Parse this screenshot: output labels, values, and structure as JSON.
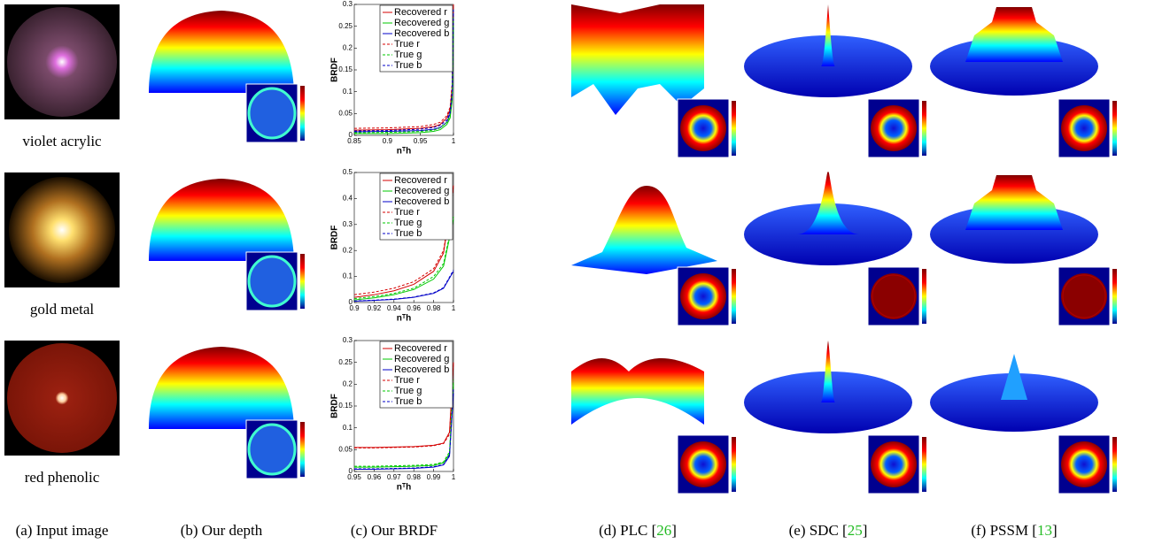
{
  "figure": {
    "row_labels": [
      "violet acrylic",
      "gold metal",
      "red phenolic"
    ],
    "captions": [
      [
        "(a) Input image"
      ],
      [
        "(b) Our depth"
      ],
      [
        "(c) Our BRDF"
      ],
      [
        "(d) PLC [",
        "26",
        "]"
      ],
      [
        "(e) SDC [",
        "25",
        "]"
      ],
      [
        "(f) PSSM [",
        "13",
        "]"
      ]
    ]
  },
  "chart_data": [
    {
      "type": "line",
      "xlabel": "nᵀh",
      "ylabel": "BRDF",
      "xlim": [
        0.85,
        1
      ],
      "xticks": [
        0.85,
        0.9,
        0.95,
        1
      ],
      "ylim": [
        0,
        0.3
      ],
      "yticks": [
        0,
        0.05,
        0.1,
        0.15,
        0.2,
        0.25,
        0.3
      ],
      "legend": "top-right",
      "x": [
        0.85,
        0.9,
        0.95,
        0.97,
        0.98,
        0.99,
        0.995,
        0.998,
        1
      ],
      "series": [
        {
          "name": "Recovered r",
          "color": "#d40000",
          "dashed": false,
          "values": [
            0.012,
            0.013,
            0.016,
            0.02,
            0.025,
            0.04,
            0.06,
            0.11,
            0.3
          ]
        },
        {
          "name": "Recovered g",
          "color": "#00c800",
          "dashed": false,
          "values": [
            0.004,
            0.004,
            0.006,
            0.009,
            0.013,
            0.025,
            0.04,
            0.08,
            0.25
          ]
        },
        {
          "name": "Recovered b",
          "color": "#0000c8",
          "dashed": false,
          "values": [
            0.008,
            0.009,
            0.011,
            0.014,
            0.018,
            0.03,
            0.05,
            0.09,
            0.28
          ]
        },
        {
          "name": "True r",
          "color": "#d40000",
          "dashed": true,
          "values": [
            0.016,
            0.017,
            0.02,
            0.025,
            0.03,
            0.045,
            0.065,
            0.12,
            0.3
          ]
        },
        {
          "name": "True g",
          "color": "#00c800",
          "dashed": true,
          "values": [
            0.006,
            0.007,
            0.009,
            0.012,
            0.017,
            0.03,
            0.045,
            0.09,
            0.27
          ]
        },
        {
          "name": "True b",
          "color": "#0000c8",
          "dashed": true,
          "values": [
            0.01,
            0.011,
            0.014,
            0.018,
            0.023,
            0.035,
            0.055,
            0.1,
            0.29
          ]
        }
      ]
    },
    {
      "type": "line",
      "xlabel": "nᵀh",
      "ylabel": "BRDF",
      "xlim": [
        0.9,
        1
      ],
      "xticks": [
        0.9,
        0.92,
        0.94,
        0.96,
        0.98,
        1
      ],
      "ylim": [
        0,
        0.5
      ],
      "yticks": [
        0,
        0.1,
        0.2,
        0.3,
        0.4,
        0.5
      ],
      "legend": "top-right",
      "x": [
        0.9,
        0.92,
        0.94,
        0.96,
        0.98,
        0.99,
        1
      ],
      "series": [
        {
          "name": "Recovered r",
          "color": "#d40000",
          "dashed": false,
          "values": [
            0.02,
            0.03,
            0.045,
            0.07,
            0.12,
            0.19,
            0.45
          ]
        },
        {
          "name": "Recovered g",
          "color": "#00c800",
          "dashed": false,
          "values": [
            0.01,
            0.018,
            0.03,
            0.05,
            0.09,
            0.14,
            0.32
          ]
        },
        {
          "name": "Recovered b",
          "color": "#0000c8",
          "dashed": false,
          "values": [
            0.005,
            0.008,
            0.012,
            0.02,
            0.035,
            0.055,
            0.12
          ]
        },
        {
          "name": "True r",
          "color": "#d40000",
          "dashed": true,
          "values": [
            0.03,
            0.04,
            0.055,
            0.08,
            0.13,
            0.2,
            0.44
          ]
        },
        {
          "name": "True g",
          "color": "#00c800",
          "dashed": true,
          "values": [
            0.015,
            0.023,
            0.035,
            0.055,
            0.1,
            0.15,
            0.33
          ]
        },
        {
          "name": "True b",
          "color": "#0000c8",
          "dashed": true,
          "values": [
            0.006,
            0.009,
            0.013,
            0.021,
            0.037,
            0.057,
            0.125
          ]
        }
      ]
    },
    {
      "type": "line",
      "xlabel": "nᵀh",
      "ylabel": "BRDF",
      "xlim": [
        0.95,
        1
      ],
      "xticks": [
        0.95,
        0.96,
        0.97,
        0.98,
        0.99,
        1
      ],
      "ylim": [
        0,
        0.3
      ],
      "yticks": [
        0,
        0.05,
        0.1,
        0.15,
        0.2,
        0.25,
        0.3
      ],
      "legend": "top-right",
      "x": [
        0.95,
        0.96,
        0.97,
        0.98,
        0.99,
        0.995,
        0.998,
        1
      ],
      "series": [
        {
          "name": "Recovered r",
          "color": "#d40000",
          "dashed": false,
          "values": [
            0.055,
            0.055,
            0.056,
            0.057,
            0.06,
            0.065,
            0.09,
            0.25
          ]
        },
        {
          "name": "Recovered g",
          "color": "#00c800",
          "dashed": false,
          "values": [
            0.01,
            0.01,
            0.011,
            0.012,
            0.014,
            0.02,
            0.04,
            0.2
          ]
        },
        {
          "name": "Recovered b",
          "color": "#0000c8",
          "dashed": false,
          "values": [
            0.005,
            0.005,
            0.006,
            0.007,
            0.01,
            0.015,
            0.035,
            0.18
          ]
        },
        {
          "name": "True r",
          "color": "#d40000",
          "dashed": true,
          "values": [
            0.054,
            0.054,
            0.055,
            0.056,
            0.059,
            0.064,
            0.085,
            0.25
          ]
        },
        {
          "name": "True g",
          "color": "#00c800",
          "dashed": true,
          "values": [
            0.012,
            0.012,
            0.013,
            0.014,
            0.016,
            0.022,
            0.045,
            0.21
          ]
        },
        {
          "name": "True b",
          "color": "#0000c8",
          "dashed": true,
          "values": [
            0.006,
            0.006,
            0.007,
            0.008,
            0.011,
            0.016,
            0.038,
            0.19
          ]
        }
      ]
    }
  ]
}
